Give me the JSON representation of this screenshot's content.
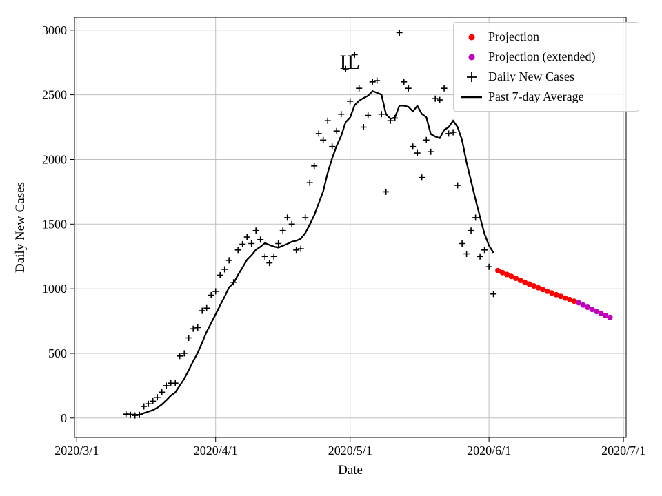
{
  "chart_data": {
    "type": "scatter",
    "title": "IL",
    "title_position": {
      "date": "2020/5/1",
      "value": 2750
    },
    "xlabel": "Date",
    "ylabel": "Daily New Cases",
    "axes": {
      "x_ticks": [
        "2020/3/1",
        "2020/4/1",
        "2020/5/1",
        "2020/6/1",
        "2020/7/1"
      ],
      "y_ticks": [
        0,
        500,
        1000,
        1500,
        2000,
        2500,
        3000
      ],
      "xlim_days_from_2020_3_1": [
        -0.5,
        122.6
      ],
      "ylim": [
        -150,
        3100
      ],
      "grid": true,
      "grid_color": "#bfbfbf"
    },
    "series": {
      "daily_new_cases": {
        "label": "Daily New Cases",
        "marker": "plus",
        "color": "#000000",
        "dates": [
          "2020/3/12",
          "2020/3/13",
          "2020/3/14",
          "2020/3/15",
          "2020/3/16",
          "2020/3/17",
          "2020/3/18",
          "2020/3/19",
          "2020/3/20",
          "2020/3/21",
          "2020/3/22",
          "2020/3/23",
          "2020/3/24",
          "2020/3/25",
          "2020/3/26",
          "2020/3/27",
          "2020/3/28",
          "2020/3/29",
          "2020/3/30",
          "2020/3/31",
          "2020/4/1",
          "2020/4/2",
          "2020/4/3",
          "2020/4/4",
          "2020/4/5",
          "2020/4/6",
          "2020/4/7",
          "2020/4/8",
          "2020/4/9",
          "2020/4/10",
          "2020/4/11",
          "2020/4/12",
          "2020/4/13",
          "2020/4/14",
          "2020/4/15",
          "2020/4/16",
          "2020/4/17",
          "2020/4/18",
          "2020/4/19",
          "2020/4/20",
          "2020/4/21",
          "2020/4/22",
          "2020/4/23",
          "2020/4/24",
          "2020/4/25",
          "2020/4/26",
          "2020/4/27",
          "2020/4/28",
          "2020/4/29",
          "2020/4/30",
          "2020/5/1",
          "2020/5/2",
          "2020/5/3",
          "2020/5/4",
          "2020/5/5",
          "2020/5/6",
          "2020/5/7",
          "2020/5/8",
          "2020/5/9",
          "2020/5/10",
          "2020/5/11",
          "2020/5/12",
          "2020/5/13",
          "2020/5/14",
          "2020/5/15",
          "2020/5/16",
          "2020/5/17",
          "2020/5/18",
          "2020/5/19",
          "2020/5/20",
          "2020/5/21",
          "2020/5/22",
          "2020/5/23",
          "2020/5/24",
          "2020/5/25",
          "2020/5/26",
          "2020/5/27",
          "2020/5/28",
          "2020/5/29",
          "2020/5/30",
          "2020/5/31",
          "2020/6/1",
          "2020/6/2"
        ],
        "values": [
          30,
          25,
          20,
          25,
          90,
          110,
          130,
          160,
          200,
          250,
          270,
          270,
          480,
          500,
          620,
          690,
          700,
          830,
          850,
          950,
          980,
          1105,
          1150,
          1220,
          1050,
          1300,
          1345,
          1400,
          1350,
          1450,
          1380,
          1250,
          1200,
          1250,
          1350,
          1450,
          1550,
          1500,
          1300,
          1310,
          1550,
          1820,
          1950,
          2200,
          2150,
          2300,
          2100,
          2220,
          2350,
          2700,
          2450,
          2810,
          2550,
          2250,
          2340,
          2600,
          2610,
          2350,
          1750,
          2300,
          2320,
          2980,
          2600,
          2550,
          2100,
          2050,
          1860,
          2150,
          2060,
          2470,
          2460,
          2550,
          2200,
          2210,
          1800,
          1350,
          1270,
          1450,
          1550,
          1250,
          1300,
          1170,
          960
        ]
      },
      "past_7day_average": {
        "label": "Past 7-day Average",
        "style": "solid-line",
        "color": "#000000",
        "derived_from": "daily_new_cases",
        "window_days": 7
      },
      "projection": {
        "label": "Projection",
        "marker": "dot",
        "color": "#ff0000",
        "dates": [
          "2020/6/3",
          "2020/6/4",
          "2020/6/5",
          "2020/6/6",
          "2020/6/7",
          "2020/6/8",
          "2020/6/9",
          "2020/6/10",
          "2020/6/11",
          "2020/6/12",
          "2020/6/13",
          "2020/6/14",
          "2020/6/15",
          "2020/6/16",
          "2020/6/17",
          "2020/6/18",
          "2020/6/19",
          "2020/6/20"
        ],
        "values": [
          1140,
          1125,
          1110,
          1095,
          1080,
          1065,
          1050,
          1036,
          1022,
          1008,
          994,
          980,
          967,
          954,
          941,
          928,
          916,
          904
        ]
      },
      "projection_extended": {
        "label": "Projection (extended)",
        "marker": "dot",
        "color": "#bf00bf",
        "dates": [
          "2020/6/21",
          "2020/6/22",
          "2020/6/23",
          "2020/6/24",
          "2020/6/25",
          "2020/6/26",
          "2020/6/27",
          "2020/6/28"
        ],
        "values": [
          892,
          874,
          857,
          840,
          824,
          808,
          793,
          778
        ]
      }
    },
    "legend": {
      "position": "upper right",
      "entries": [
        {
          "key": "projection",
          "label": "Projection",
          "marker": "dot",
          "color": "#ff0000"
        },
        {
          "key": "projection_extended",
          "label": "Projection (extended)",
          "marker": "dot",
          "color": "#bf00bf"
        },
        {
          "key": "daily_new_cases",
          "label": "Daily New Cases",
          "marker": "plus",
          "color": "#000000"
        },
        {
          "key": "past_7day_average",
          "label": "Past 7-day Average",
          "marker": "line",
          "color": "#000000"
        }
      ]
    }
  }
}
